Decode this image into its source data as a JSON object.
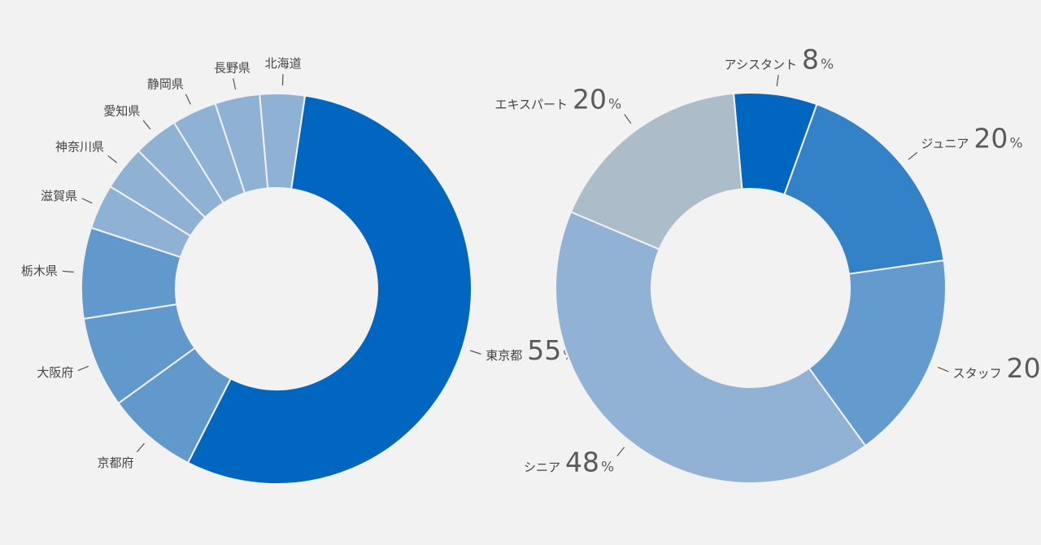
{
  "chart_data": [
    {
      "type": "pie",
      "variant": "donut",
      "title": "",
      "percent_unit": "%",
      "slices": [
        {
          "label": "東京都",
          "value": 55,
          "value_label": "55",
          "color": "#0066bf"
        },
        {
          "label": "京都府",
          "value": 7.5,
          "color": "#6199cc"
        },
        {
          "label": "大阪府",
          "value": 7.5,
          "color": "#6199cc"
        },
        {
          "label": "栃木県",
          "value": 7.5,
          "color": "#6199cc"
        },
        {
          "label": "滋賀県",
          "value": 3.7,
          "color": "#8fb1d4"
        },
        {
          "label": "神奈川県",
          "value": 3.7,
          "color": "#8fb1d4"
        },
        {
          "label": "愛知県",
          "value": 3.7,
          "color": "#8fb1d4"
        },
        {
          "label": "静岡県",
          "value": 3.7,
          "color": "#8fb1d4"
        },
        {
          "label": "長野県",
          "value": 3.7,
          "color": "#8fb1d4"
        },
        {
          "label": "北海道",
          "value": 3.7,
          "color": "#8fb1d4"
        }
      ]
    },
    {
      "type": "pie",
      "variant": "donut",
      "title": "",
      "percent_unit": "%",
      "slices": [
        {
          "label": "アシスタント",
          "value": 8,
          "value_label": "8",
          "color": "#0066bf"
        },
        {
          "label": "ジュニア",
          "value": 20,
          "value_label": "20",
          "color": "#3381c6"
        },
        {
          "label": "スタッフ",
          "value": 20,
          "value_label": "20",
          "color": "#639bce"
        },
        {
          "label": "シニア",
          "value": 48,
          "value_label": "48",
          "color": "#91b2d4"
        },
        {
          "label": "エキスパート",
          "value": 20,
          "value_label": "20",
          "color": "#adbcc9"
        }
      ]
    }
  ]
}
